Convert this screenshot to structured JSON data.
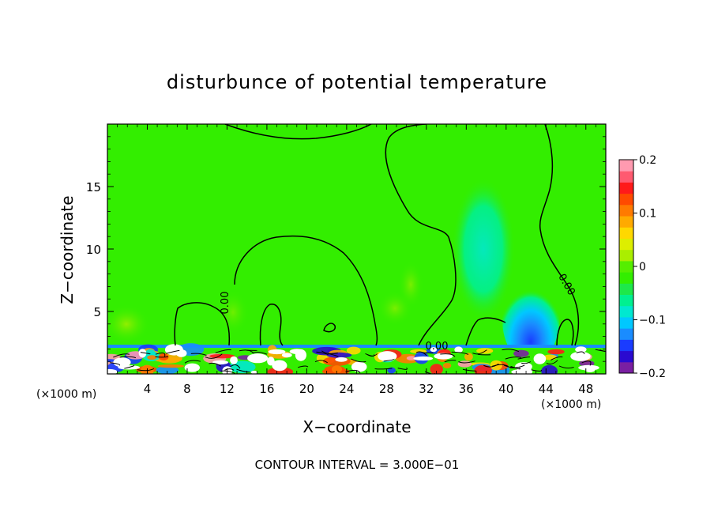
{
  "chart_data": {
    "type": "heatmap",
    "title": "disturbunce of potential temperature",
    "xlabel": "X−coordinate",
    "ylabel": "Z−coordinate",
    "x_unit_left": "(×1000 m)",
    "x_unit_right": "(×1000 m)",
    "xlim": [
      0,
      50
    ],
    "ylim": [
      0,
      20
    ],
    "x_ticks": [
      4,
      8,
      12,
      16,
      20,
      24,
      28,
      32,
      36,
      40,
      44,
      48
    ],
    "x_tick_labels": [
      "4",
      "8",
      "12",
      "16",
      "20",
      "24",
      "28",
      "32",
      "36",
      "40",
      "44",
      "48"
    ],
    "y_ticks": [
      5,
      10,
      15
    ],
    "y_tick_labels": [
      "5",
      "10",
      "15"
    ],
    "contour_labels": [
      "0.00",
      "0.00",
      "0.00"
    ],
    "footer": "CONTOUR INTERVAL = 3.000E−01",
    "colorbar": {
      "range": [
        -0.2,
        0.2
      ],
      "tick_values": [
        0.2,
        0.1,
        0,
        -0.1,
        -0.2
      ],
      "tick_labels": [
        "0.2",
        "0.1",
        "0",
        "−0.1",
        "−0.2"
      ],
      "colors": [
        "#7a1fa2",
        "#2a0ad0",
        "#1a3cff",
        "#1a8cff",
        "#00c8ff",
        "#00e8d0",
        "#00f090",
        "#1ee84a",
        "#33ee00",
        "#55ee00",
        "#aaee00",
        "#ddee00",
        "#ffd800",
        "#ffaa00",
        "#ff7a00",
        "#ff4a00",
        "#ff1a1a",
        "#ff5a70",
        "#ff9ab0"
      ]
    },
    "background_value": 0.0,
    "features": [
      {
        "name": "turbulent boundary layer",
        "x_range": [
          0,
          50
        ],
        "z_range": [
          0,
          2.3
        ],
        "value_range": [
          -0.2,
          0.2
        ]
      },
      {
        "name": "cool plume",
        "x_center": 42.5,
        "z_center": 3.5,
        "value": -0.15
      },
      {
        "name": "cool column",
        "x_center": 38.5,
        "z_center": 10,
        "value": -0.04
      }
    ],
    "grid": false,
    "legend": "right"
  }
}
